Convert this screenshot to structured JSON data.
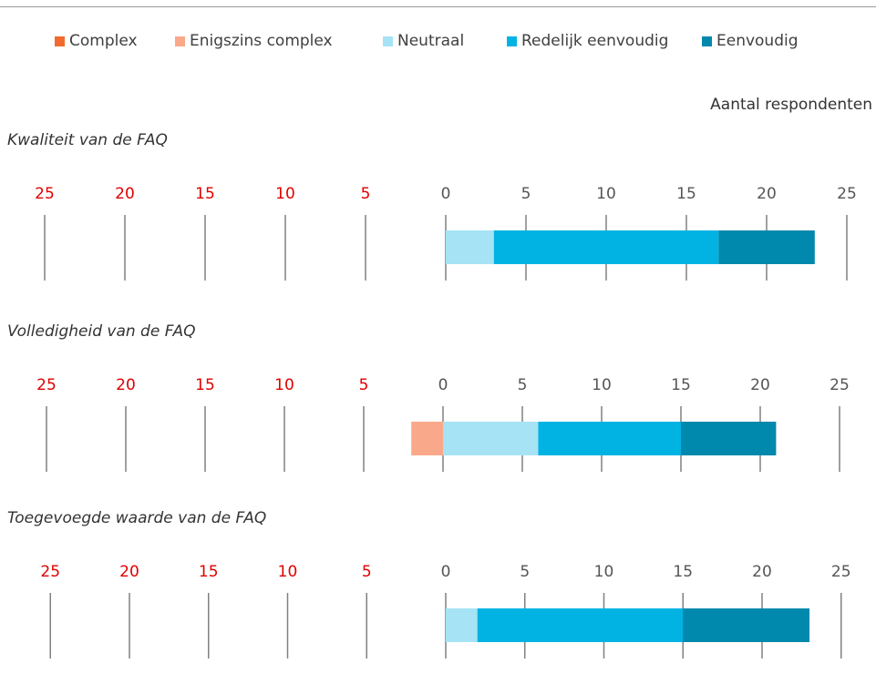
{
  "colors": {
    "Complex": "#f26b2e",
    "Enigszins complex": "#f9a98a",
    "Neutraal": "#a6e3f5",
    "Redelijk eenvoudig": "#00b3e3",
    "Eenvoudig": "#0088ad",
    "negative_tick": "#e00000",
    "positive_tick": "#555555",
    "gridline": "#808080"
  },
  "legend": [
    "Complex",
    "Enigszins complex",
    "Neutraal",
    "Redelijk eenvoudig",
    "Eenvoudig"
  ],
  "unit_label": "Aantal respondenten",
  "chart_data": [
    {
      "type": "bar",
      "title": "Kwaliteit van de FAQ",
      "orientation": "horizontal-diverging",
      "xlim": [
        -25,
        25
      ],
      "ticks": [
        "25",
        "20",
        "15",
        "10",
        "5",
        "0",
        "5",
        "10",
        "15",
        "20",
        "25"
      ],
      "series": [
        {
          "name": "Complex",
          "value": 0
        },
        {
          "name": "Enigszins complex",
          "value": 0
        },
        {
          "name": "Neutraal",
          "value": 3
        },
        {
          "name": "Redelijk eenvoudig",
          "value": 14
        },
        {
          "name": "Eenvoudig",
          "value": 6
        }
      ]
    },
    {
      "type": "bar",
      "title": "Volledigheid van de FAQ",
      "orientation": "horizontal-diverging",
      "xlim": [
        -25,
        25
      ],
      "ticks": [
        "25",
        "20",
        "15",
        "10",
        "5",
        "0",
        "5",
        "10",
        "15",
        "20",
        "25"
      ],
      "series": [
        {
          "name": "Complex",
          "value": 0
        },
        {
          "name": "Enigszins complex",
          "value": 2
        },
        {
          "name": "Neutraal",
          "value": 6
        },
        {
          "name": "Redelijk eenvoudig",
          "value": 9
        },
        {
          "name": "Eenvoudig",
          "value": 6
        }
      ]
    },
    {
      "type": "bar",
      "title": "Toegevoegde waarde van de FAQ",
      "orientation": "horizontal-diverging",
      "xlim": [
        -25,
        25
      ],
      "ticks": [
        "25",
        "20",
        "15",
        "10",
        "5",
        "0",
        "5",
        "10",
        "15",
        "20",
        "25"
      ],
      "series": [
        {
          "name": "Complex",
          "value": 0
        },
        {
          "name": "Enigszins complex",
          "value": 0
        },
        {
          "name": "Neutraal",
          "value": 2
        },
        {
          "name": "Redelijk eenvoudig",
          "value": 13
        },
        {
          "name": "Eenvoudig",
          "value": 8
        }
      ]
    }
  ]
}
